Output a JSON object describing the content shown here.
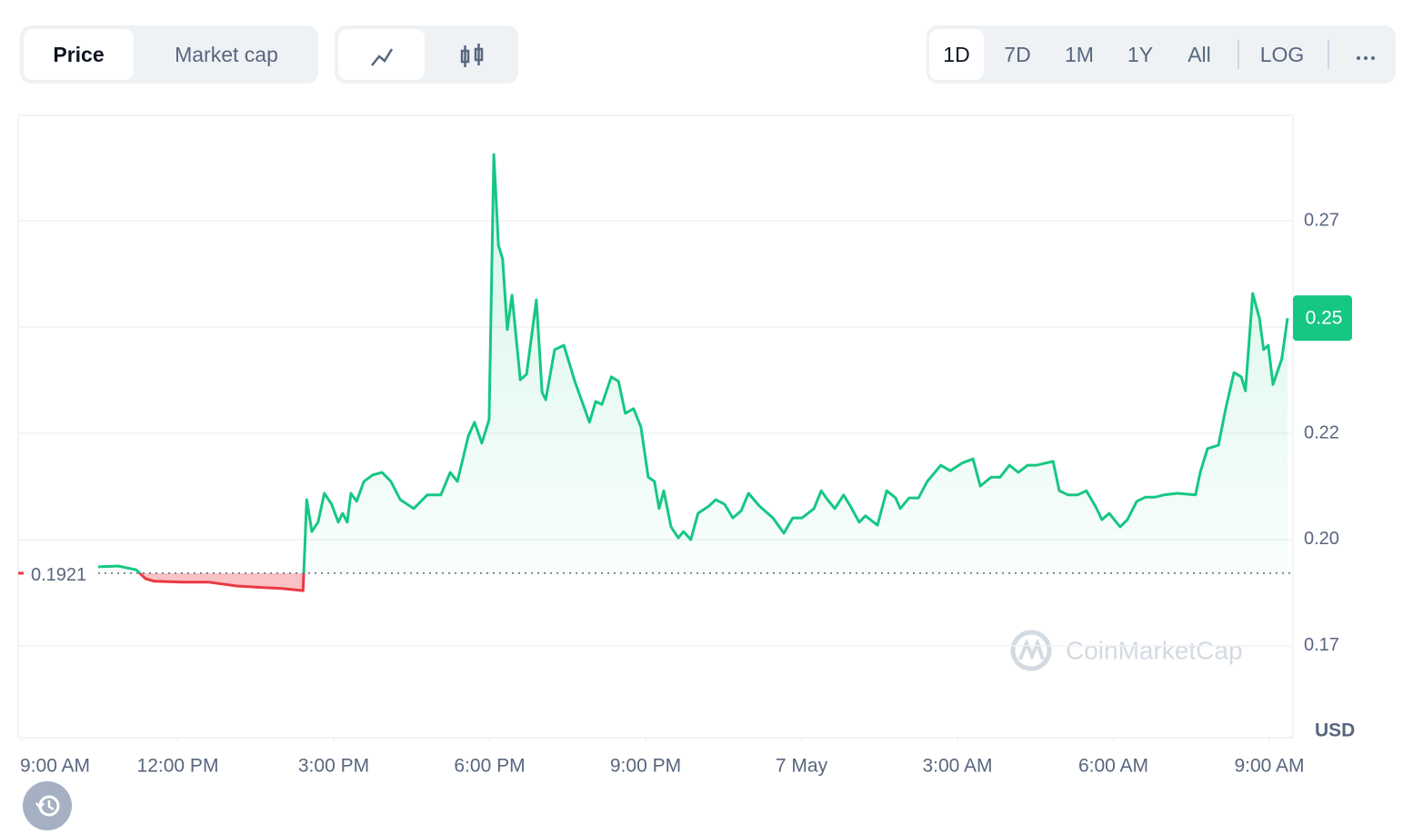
{
  "toolbar": {
    "tabs": [
      "Price",
      "Market cap"
    ],
    "ranges": [
      "1D",
      "7D",
      "1M",
      "1Y",
      "All"
    ],
    "scale": "LOG"
  },
  "chart_data": {
    "type": "line",
    "x": [
      1.47,
      1.85,
      2.2,
      2.38,
      2.55,
      3.08,
      3.6,
      4.13,
      4.65,
      5.0,
      5.41,
      5.48,
      5.58,
      5.7,
      5.82,
      5.96,
      6.09,
      6.17,
      6.26,
      6.33,
      6.44,
      6.58,
      6.75,
      6.93,
      7.1,
      7.28,
      7.54,
      7.8,
      8.06,
      8.24,
      8.38,
      8.59,
      8.71,
      8.85,
      8.99,
      9.08,
      9.17,
      9.25,
      9.34,
      9.43,
      9.59,
      9.71,
      9.9,
      10.01,
      10.08,
      10.25,
      10.43,
      10.64,
      10.92,
      11.04,
      11.16,
      11.34,
      11.48,
      11.61,
      11.77,
      11.91,
      12.05,
      12.17,
      12.26,
      12.35,
      12.49,
      12.63,
      12.73,
      12.87,
      13.01,
      13.22,
      13.35,
      13.52,
      13.68,
      13.84,
      13.98,
      14.19,
      14.45,
      14.66,
      14.83,
      15.01,
      15.24,
      15.38,
      15.5,
      15.64,
      15.81,
      15.94,
      16.11,
      16.23,
      16.46,
      16.64,
      16.81,
      16.9,
      17.07,
      17.25,
      17.42,
      17.68,
      17.86,
      18.09,
      18.3,
      18.44,
      18.65,
      18.82,
      19.0,
      19.17,
      19.35,
      19.52,
      19.7,
      19.84,
      19.96,
      20.13,
      20.31,
      20.48,
      20.66,
      20.78,
      20.92,
      21.13,
      21.27,
      21.45,
      21.62,
      21.8,
      21.97,
      22.23,
      22.58,
      22.67,
      22.81,
      23.02,
      23.16,
      23.32,
      23.46,
      23.54,
      23.68,
      23.81,
      23.89,
      23.98,
      24.07,
      24.24,
      24.35
    ],
    "values": [
      0.1936,
      0.1938,
      0.1929,
      0.1908,
      0.1902,
      0.19,
      0.19,
      0.1891,
      0.1887,
      0.1885,
      0.188,
      0.2094,
      0.2019,
      0.2041,
      0.2109,
      0.2083,
      0.2041,
      0.2062,
      0.2041,
      0.2109,
      0.209,
      0.2137,
      0.2152,
      0.2158,
      0.2137,
      0.2094,
      0.2073,
      0.2105,
      0.2105,
      0.2158,
      0.2137,
      0.2244,
      0.2276,
      0.2227,
      0.2282,
      0.2906,
      0.2692,
      0.266,
      0.2494,
      0.2575,
      0.2376,
      0.2389,
      0.2564,
      0.2346,
      0.2329,
      0.2447,
      0.2457,
      0.2372,
      0.2276,
      0.2325,
      0.2318,
      0.2383,
      0.2372,
      0.2297,
      0.2308,
      0.2265,
      0.2147,
      0.2137,
      0.2073,
      0.2115,
      0.203,
      0.2004,
      0.2019,
      0.2,
      0.2062,
      0.2079,
      0.2094,
      0.2083,
      0.2051,
      0.2068,
      0.2109,
      0.2079,
      0.2051,
      0.2015,
      0.2051,
      0.2051,
      0.2073,
      0.2115,
      0.2094,
      0.2073,
      0.2105,
      0.2079,
      0.2041,
      0.2056,
      0.2034,
      0.2115,
      0.2098,
      0.2073,
      0.2098,
      0.2098,
      0.2137,
      0.2175,
      0.2162,
      0.218,
      0.219,
      0.2126,
      0.2147,
      0.2147,
      0.2175,
      0.2158,
      0.2175,
      0.2175,
      0.218,
      0.2184,
      0.2115,
      0.2105,
      0.2105,
      0.2115,
      0.2077,
      0.2047,
      0.2062,
      0.203,
      0.2047,
      0.209,
      0.21,
      0.21,
      0.2105,
      0.2109,
      0.2105,
      0.2158,
      0.2214,
      0.2222,
      0.2308,
      0.2393,
      0.2383,
      0.235,
      0.2579,
      0.2521,
      0.2447,
      0.2457,
      0.2365,
      0.2425,
      0.2521
    ],
    "color": "#16c784",
    "down_color": "#ea3943",
    "baseline": 0.1921,
    "last_value_label": "0.25",
    "xlim": [
      -0.07,
      24.42
    ],
    "xticks": [
      {
        "value": 0,
        "label": "9:00 AM"
      },
      {
        "value": 3,
        "label": "12:00 PM"
      },
      {
        "value": 6,
        "label": "3:00 PM"
      },
      {
        "value": 9,
        "label": "6:00 PM"
      },
      {
        "value": 12,
        "label": "9:00 PM"
      },
      {
        "value": 15,
        "label": "7 May"
      },
      {
        "value": 18,
        "label": "3:00 AM"
      },
      {
        "value": 21,
        "label": "6:00 AM"
      },
      {
        "value": 24,
        "label": "9:00 AM"
      }
    ],
    "ylim": [
      0.1534,
      0.2998
    ],
    "yticks": [
      {
        "value": 0.275,
        "label": "0.27"
      },
      {
        "value": 0.25,
        "label": null
      },
      {
        "value": 0.225,
        "label": "0.22"
      },
      {
        "value": 0.2,
        "label": "0.20"
      },
      {
        "value": 0.175,
        "label": "0.17"
      }
    ],
    "grid": true,
    "currency": "USD",
    "watermark": "CoinMarketCap"
  }
}
